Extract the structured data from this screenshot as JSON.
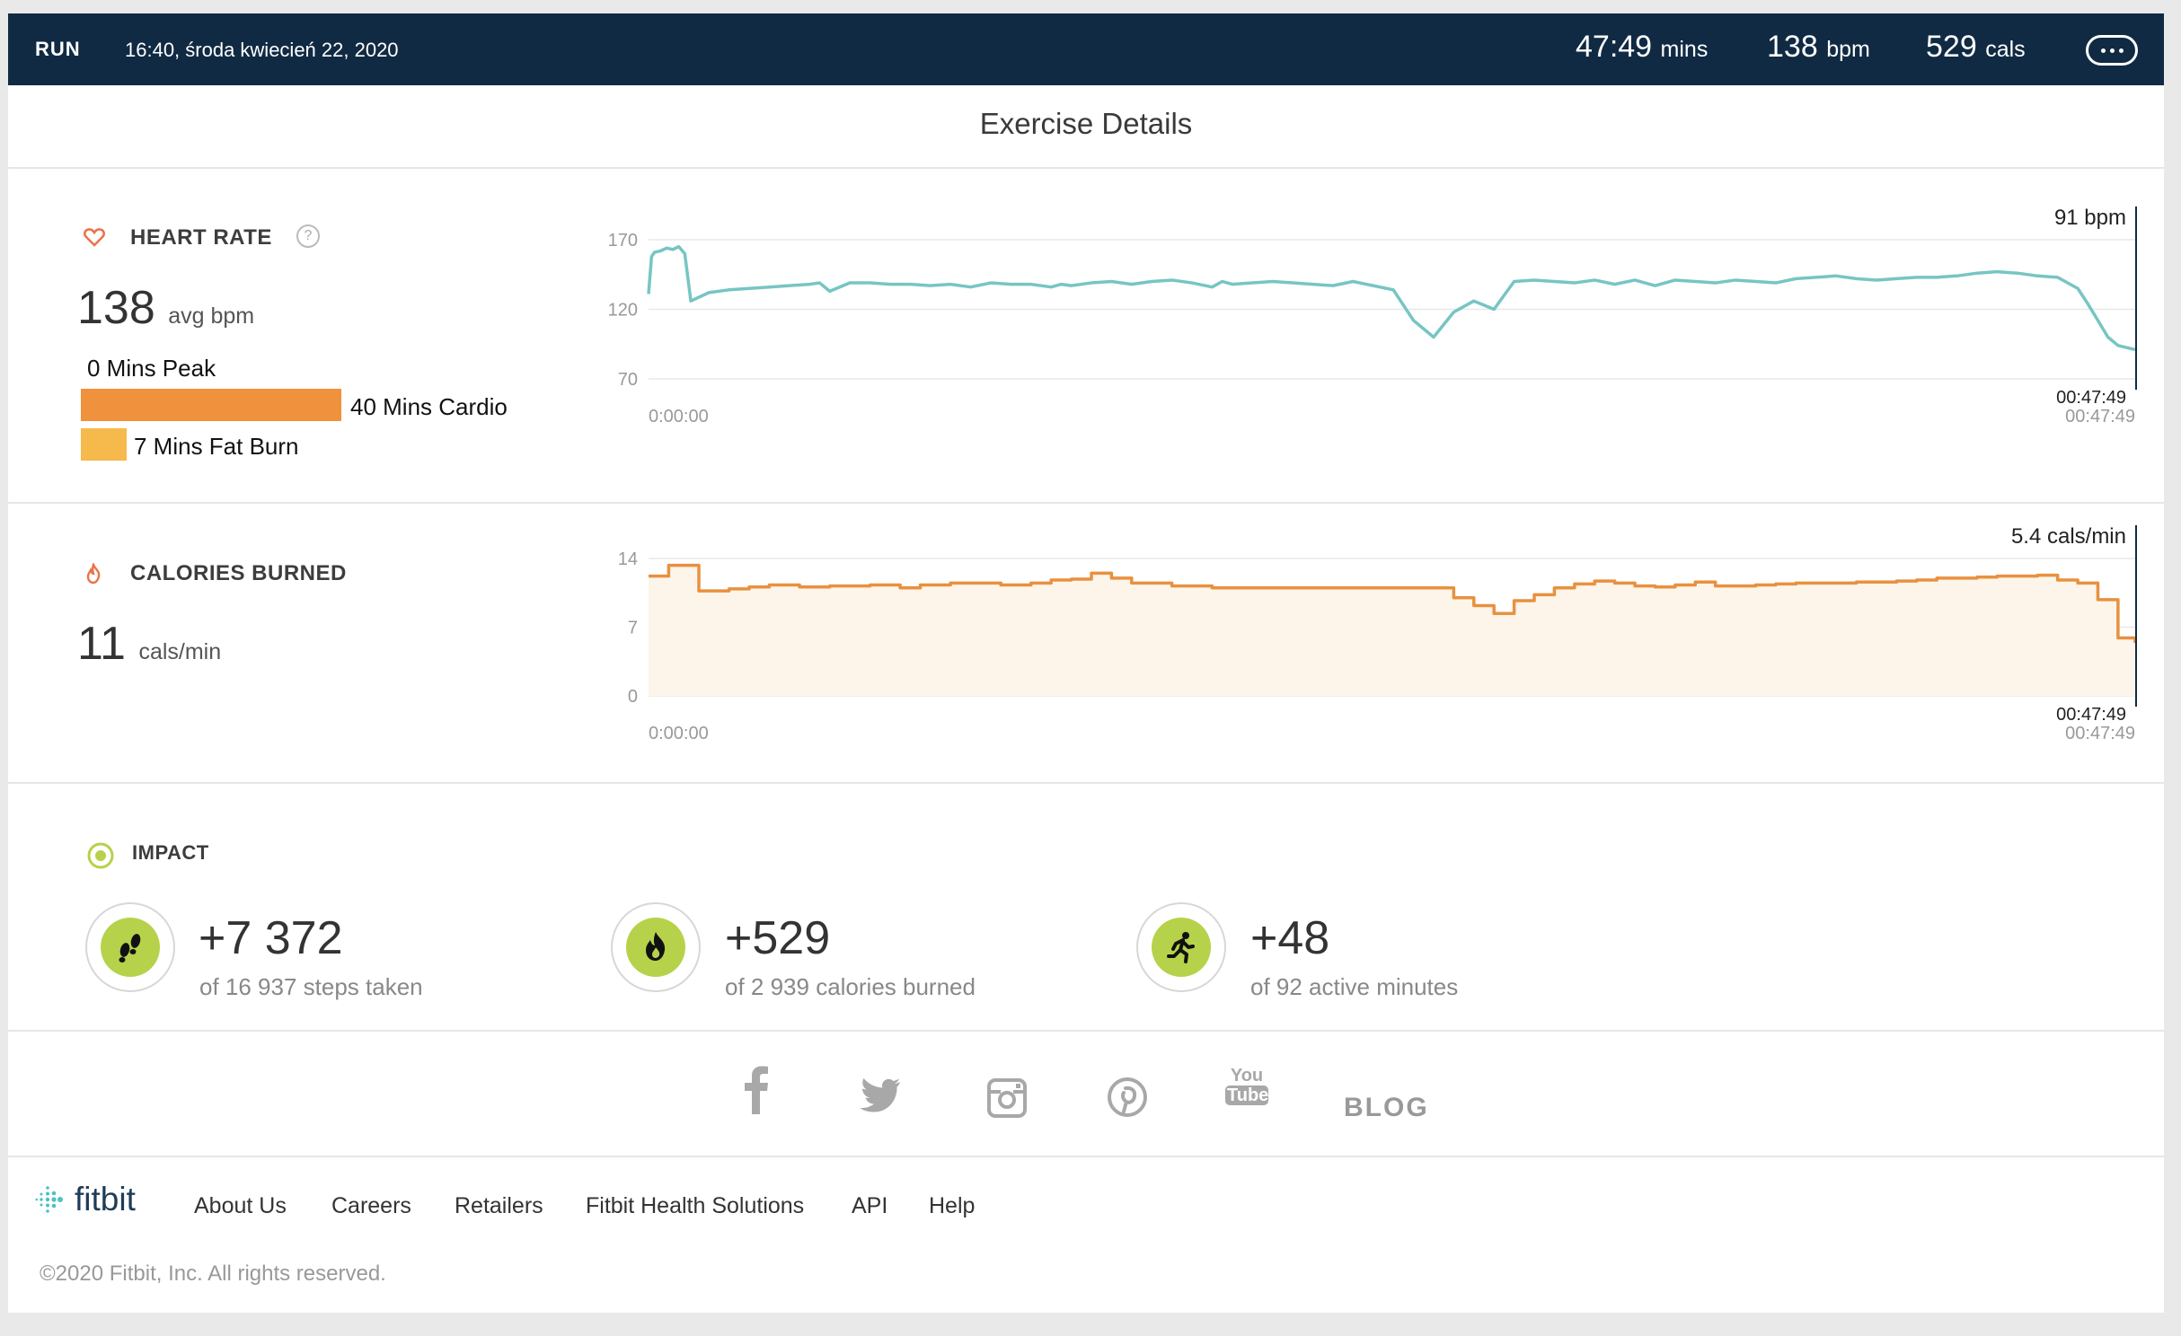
{
  "topbar": {
    "activity": "RUN",
    "datetime": "16:40, środa kwiecień 22, 2020",
    "duration_value": "47:49",
    "duration_unit": "mins",
    "bpm_value": "138",
    "bpm_unit": "bpm",
    "cals_value": "529",
    "cals_unit": "cals",
    "more_icon": "more-dots-icon"
  },
  "page_title": "Exercise Details",
  "heart_rate": {
    "label": "HEART RATE",
    "help": "?",
    "avg_value": "138",
    "avg_unit": "avg bpm",
    "peak": "0 Mins Peak",
    "cardio": "40 Mins Cardio",
    "fat_burn": "7 Mins Fat Burn",
    "cardio_minutes": 40,
    "fat_burn_minutes": 7,
    "colors": {
      "cardio": "#f0913e",
      "fat_burn": "#f6b94b",
      "line": "#76c5c3",
      "icon": "#e8744a"
    }
  },
  "calories": {
    "label": "CALORIES BURNED",
    "rate_value": "11",
    "rate_unit": "cals/min",
    "colors": {
      "line": "#e8913f",
      "fill": "#fdf5ea",
      "icon": "#e8744a"
    }
  },
  "chart_data": [
    {
      "type": "line",
      "title": "",
      "yticks": [
        170,
        120,
        70
      ],
      "ylim": [
        70,
        170
      ],
      "xlim_seconds": [
        0,
        2869
      ],
      "x_start_label": "0:00:00",
      "x_end_label": "00:47:49",
      "cursor_value": "91 bpm",
      "cursor_time": "00:47:49",
      "series": [
        {
          "x_minutes": [
            0,
            0.3,
            0.6,
            1.2,
            1.8,
            2.4,
            3.0,
            3.6,
            4.2,
            6,
            8,
            10,
            12,
            14,
            16,
            17,
            18,
            20,
            22,
            24,
            26,
            28,
            30,
            32,
            34,
            36,
            38,
            40,
            41,
            42,
            44,
            46,
            48,
            50,
            52,
            54,
            56,
            57,
            58,
            60,
            62,
            64,
            66,
            68,
            70,
            72,
            74,
            76,
            78,
            80,
            82,
            84,
            86,
            88,
            90,
            92,
            94,
            96,
            98,
            100,
            102,
            104,
            106,
            108,
            110,
            112,
            114,
            116,
            118,
            120,
            122,
            124,
            126,
            128,
            130,
            132,
            134,
            136,
            138,
            140,
            142,
            143,
            144,
            145,
            146,
            147.7
          ],
          "y": [
            131,
            158,
            161,
            162,
            164,
            163,
            165,
            160,
            126,
            132,
            134,
            135,
            136,
            137,
            138,
            139,
            133,
            139,
            139,
            138,
            138,
            137,
            138,
            136,
            139,
            138,
            138,
            136,
            138,
            137,
            139,
            140,
            138,
            140,
            141,
            139,
            136,
            140,
            138,
            139,
            140,
            139,
            138,
            137,
            140,
            137,
            134,
            112,
            100,
            118,
            126,
            120,
            140,
            141,
            140,
            139,
            141,
            138,
            141,
            137,
            141,
            140,
            139,
            141,
            140,
            139,
            142,
            143,
            144,
            142,
            141,
            142,
            143,
            143,
            144,
            146,
            147,
            146,
            144,
            143,
            135,
            124,
            112,
            100,
            94,
            91
          ]
        }
      ]
    },
    {
      "type": "area",
      "title": "",
      "yticks": [
        14,
        7,
        0
      ],
      "ylim": [
        0,
        14
      ],
      "xlim_seconds": [
        0,
        2869
      ],
      "x_start_label": "0:00:00",
      "x_end_label": "00:47:49",
      "cursor_value": "5.4 cals/min",
      "cursor_time": "00:47:49",
      "series": [
        {
          "x_minutes": [
            0,
            1,
            2,
            3.5,
            5,
            6,
            8,
            10,
            12,
            15,
            18,
            20,
            22,
            25,
            27,
            30,
            32,
            35,
            38,
            40,
            42,
            44,
            46,
            48,
            50,
            52,
            54,
            56,
            58,
            60,
            62,
            64,
            66,
            68,
            70,
            72,
            74,
            76,
            78,
            80,
            82,
            84,
            86,
            88,
            90,
            92,
            94,
            96,
            98,
            100,
            102,
            104,
            106,
            108,
            110,
            112,
            114,
            116,
            118,
            120,
            122,
            124,
            126,
            128,
            130,
            132,
            134,
            136,
            138,
            140,
            142,
            144,
            146,
            147.7
          ],
          "y": [
            12.2,
            12.2,
            13.3,
            13.3,
            10.7,
            10.7,
            10.9,
            11.1,
            11.3,
            11.1,
            11.2,
            11.2,
            11.3,
            11.0,
            11.3,
            11.5,
            11.5,
            11.3,
            11.5,
            11.8,
            11.9,
            12.5,
            12.0,
            11.5,
            11.5,
            11.2,
            11.2,
            11.0,
            11.0,
            11.0,
            11.0,
            11.0,
            11.0,
            11.0,
            11.0,
            11.0,
            11.0,
            11.0,
            11.0,
            10.0,
            9.2,
            8.4,
            9.7,
            10.3,
            11.0,
            11.4,
            11.7,
            11.5,
            11.2,
            11.1,
            11.3,
            11.6,
            11.2,
            11.2,
            11.3,
            11.4,
            11.5,
            11.5,
            11.5,
            11.6,
            11.6,
            11.7,
            11.8,
            12.0,
            12.0,
            12.1,
            12.2,
            12.2,
            12.3,
            11.8,
            11.5,
            9.8,
            5.9,
            5.4
          ]
        }
      ]
    }
  ],
  "impact": {
    "label": "IMPACT",
    "items": [
      {
        "value": "+7 372",
        "sub": "of 16 937 steps taken",
        "icon": "footprints-icon"
      },
      {
        "value": "+529",
        "sub": "of 2 939 calories burned",
        "icon": "flame-icon"
      },
      {
        "value": "+48",
        "sub": "of 92 active minutes",
        "icon": "running-person-icon"
      }
    ]
  },
  "social": {
    "icons": [
      "facebook-icon",
      "twitter-icon",
      "instagram-icon",
      "pinterest-icon",
      "youtube-icon"
    ],
    "youtube_top": "You",
    "youtube_bottom": "Tube",
    "blog": "BLOG"
  },
  "footer": {
    "logo": "fitbit",
    "links": [
      "About Us",
      "Careers",
      "Retailers",
      "Fitbit Health Solutions",
      "API",
      "Help"
    ],
    "copyright": "©2020 Fitbit, Inc. All rights reserved."
  }
}
